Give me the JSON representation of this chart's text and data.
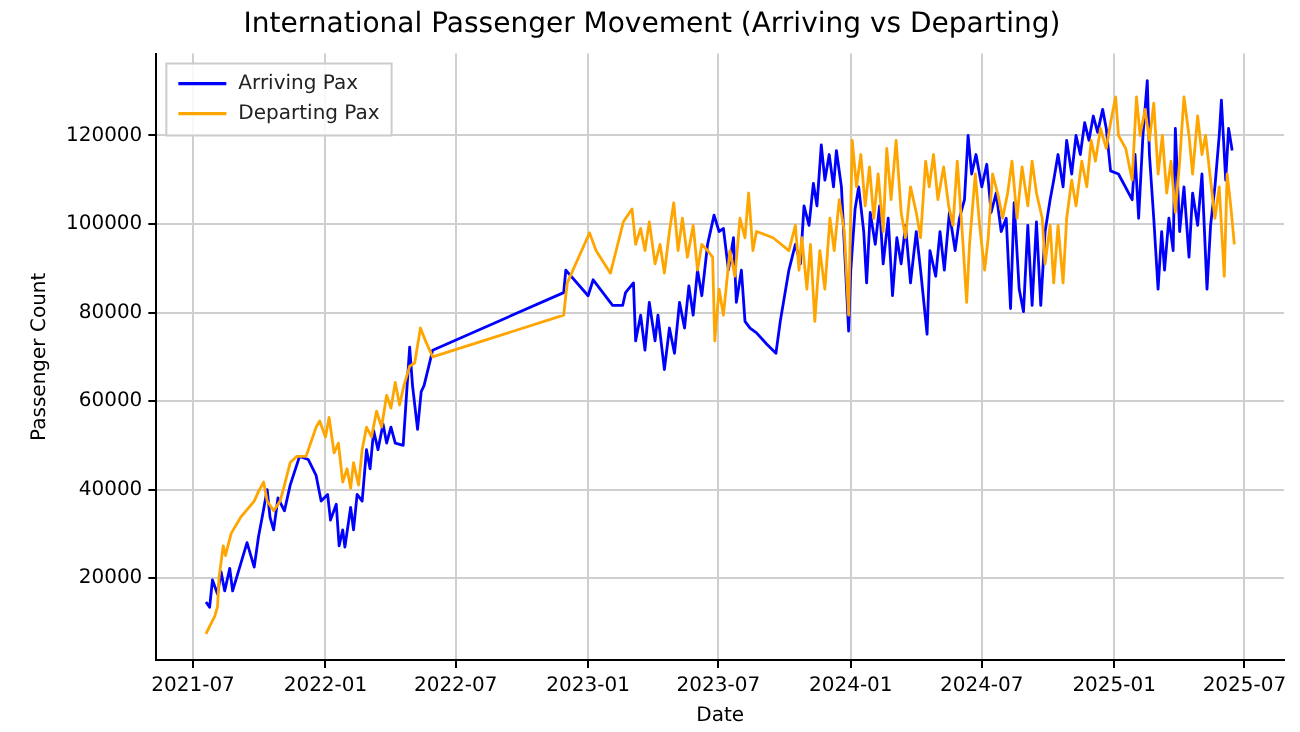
{
  "chart_data": {
    "type": "line",
    "title": "International Passenger Movement (Arriving vs Departing)",
    "xlabel": "Date",
    "ylabel": "Passenger Count",
    "xlim": [
      "2021-05-11",
      "2025-08-25"
    ],
    "xticks": [
      "2021-07",
      "2022-01",
      "2022-07",
      "2023-01",
      "2023-07",
      "2024-01",
      "2024-07",
      "2025-01",
      "2025-07"
    ],
    "ylim": [
      1500,
      138500
    ],
    "yticks": [
      20000,
      40000,
      60000,
      80000,
      100000,
      120000
    ],
    "grid": true,
    "legend": "top left",
    "marker": "none",
    "line_style": "solid",
    "series": [
      {
        "name": "Arriving Pax",
        "color": "#0000ff",
        "x": [
          "2021-07-19",
          "2021-07-24",
          "2021-07-28",
          "2021-08-04",
          "2021-08-09",
          "2021-08-14",
          "2021-08-21",
          "2021-08-25",
          "2021-09-14",
          "2021-09-24",
          "2021-09-30",
          "2021-10-05",
          "2021-10-12",
          "2021-10-16",
          "2021-10-21",
          "2021-10-27",
          "2021-11-05",
          "2021-11-13",
          "2021-11-26",
          "2021-12-08",
          "2021-12-19",
          "2021-12-26",
          "2022-01-04",
          "2022-01-08",
          "2022-01-16",
          "2022-01-20",
          "2022-01-25",
          "2022-01-28",
          "2022-02-05",
          "2022-02-09",
          "2022-02-14",
          "2022-02-21",
          "2022-02-27",
          "2022-03-04",
          "2022-03-09",
          "2022-03-15",
          "2022-03-22",
          "2022-03-27",
          "2022-04-02",
          "2022-04-08",
          "2022-04-19",
          "2022-04-28",
          "2022-05-02",
          "2022-05-09",
          "2022-05-14",
          "2022-05-18",
          "2022-05-30",
          "2022-11-28",
          "2022-12-01",
          "2023-01-01",
          "2023-01-08",
          "2023-02-04",
          "2023-02-18",
          "2023-02-22",
          "2023-03-05",
          "2023-03-08",
          "2023-03-15",
          "2023-03-21",
          "2023-03-27",
          "2023-04-04",
          "2023-04-08",
          "2023-04-17",
          "2023-04-24",
          "2023-05-01",
          "2023-05-08",
          "2023-05-15",
          "2023-05-21",
          "2023-05-27",
          "2023-06-02",
          "2023-06-08",
          "2023-06-16",
          "2023-06-25",
          "2023-07-02",
          "2023-07-08",
          "2023-07-15",
          "2023-07-22",
          "2023-07-26",
          "2023-08-02",
          "2023-08-07",
          "2023-08-14",
          "2023-08-23",
          "2023-09-06",
          "2023-09-19",
          "2023-09-25",
          "2023-10-07",
          "2023-10-16",
          "2023-10-23",
          "2023-10-28",
          "2023-11-04",
          "2023-11-10",
          "2023-11-15",
          "2023-11-21",
          "2023-11-26",
          "2023-12-02",
          "2023-12-08",
          "2023-12-12",
          "2023-12-19",
          "2023-12-29",
          "2024-01-01",
          "2024-01-07",
          "2024-01-12",
          "2024-01-19",
          "2024-01-23",
          "2024-01-28",
          "2024-02-04",
          "2024-02-10",
          "2024-02-15",
          "2024-02-22",
          "2024-02-28",
          "2024-03-05",
          "2024-03-11",
          "2024-03-17",
          "2024-03-24",
          "2024-04-01",
          "2024-04-07",
          "2024-04-16",
          "2024-04-20",
          "2024-04-28",
          "2024-05-04",
          "2024-05-10",
          "2024-05-17",
          "2024-05-25",
          "2024-05-31",
          "2024-06-07",
          "2024-06-12",
          "2024-06-17",
          "2024-06-23",
          "2024-07-01",
          "2024-07-08",
          "2024-07-14",
          "2024-07-21",
          "2024-07-28",
          "2024-08-04",
          "2024-08-10",
          "2024-08-15",
          "2024-08-22",
          "2024-08-28",
          "2024-09-03",
          "2024-09-09",
          "2024-09-15",
          "2024-09-21",
          "2024-09-27",
          "2024-10-04",
          "2024-10-09",
          "2024-10-15",
          "2024-10-22",
          "2024-10-27",
          "2024-11-03",
          "2024-11-09",
          "2024-11-15",
          "2024-11-21",
          "2024-11-27",
          "2024-12-03",
          "2024-12-09",
          "2024-12-16",
          "2024-12-21",
          "2024-12-27",
          "2025-01-07",
          "2025-01-26",
          "2025-01-30",
          "2025-02-04",
          "2025-02-10",
          "2025-02-16",
          "2025-02-19",
          "2025-02-25",
          "2025-03-03",
          "2025-03-08",
          "2025-03-12",
          "2025-03-18",
          "2025-03-24",
          "2025-03-27",
          "2025-04-02",
          "2025-04-08",
          "2025-04-15",
          "2025-04-20",
          "2025-04-27",
          "2025-05-03",
          "2025-05-10",
          "2025-05-15",
          "2025-05-21",
          "2025-05-27",
          "2025-05-30",
          "2025-06-05",
          "2025-06-09",
          "2025-06-14"
        ],
        "values": [
          14600,
          13400,
          19600,
          16400,
          21400,
          17100,
          22200,
          17100,
          28000,
          22500,
          29400,
          33700,
          40000,
          33700,
          30900,
          38100,
          35200,
          41000,
          47500,
          46800,
          43200,
          37400,
          38900,
          33100,
          36700,
          27300,
          30900,
          27000,
          36000,
          30900,
          38900,
          37400,
          49000,
          44700,
          53300,
          49000,
          54800,
          50500,
          54100,
          50500,
          50000,
          72200,
          63500,
          53600,
          62100,
          63500,
          71500,
          84500,
          89600,
          83800,
          87400,
          81600,
          81600,
          84500,
          86700,
          73600,
          79400,
          71500,
          82300,
          73600,
          79400,
          67100,
          76500,
          70800,
          82300,
          76500,
          86000,
          79400,
          89600,
          83800,
          95400,
          102000,
          98300,
          99000,
          89600,
          96900,
          82300,
          89600,
          78000,
          76500,
          75400,
          72900,
          70800,
          78000,
          89600,
          95400,
          91000,
          104100,
          99700,
          109200,
          104100,
          117900,
          109900,
          115700,
          108400,
          116600,
          108400,
          75800,
          89600,
          103400,
          108400,
          98300,
          86700,
          102600,
          95400,
          104100,
          91000,
          101300,
          83800,
          96900,
          91000,
          99700,
          86700,
          98300,
          89600,
          75100,
          94000,
          88200,
          98300,
          89600,
          102600,
          94000,
          101300,
          105500,
          120000,
          111300,
          115700,
          108400,
          113500,
          102600,
          107000,
          98300,
          101300,
          80900,
          104800,
          85300,
          80200,
          99700,
          81600,
          100500,
          81600,
          98300,
          105500,
          109900,
          115700,
          108400,
          118900,
          111300,
          120000,
          115700,
          122900,
          118900,
          124400,
          120700,
          125900,
          121600,
          112000,
          111300,
          105500,
          115700,
          101300,
          120000,
          132400,
          115700,
          101300,
          85300,
          98300,
          89600,
          101300,
          94000,
          121600,
          98300,
          108400,
          92500,
          107000,
          99700,
          111300,
          85300,
          99700,
          108400,
          120000,
          128000,
          109900,
          121600,
          116600
        ]
      },
      {
        "name": "Departing Pax",
        "color": "#ffa500",
        "x": [
          "2021-07-19",
          "2021-07-24",
          "2021-07-31",
          "2021-08-04",
          "2021-08-06",
          "2021-08-12",
          "2021-08-15",
          "2021-08-23",
          "2021-09-05",
          "2021-09-24",
          "2021-09-30",
          "2021-10-07",
          "2021-10-12",
          "2021-10-21",
          "2021-10-30",
          "2021-11-05",
          "2021-11-13",
          "2021-11-22",
          "2021-12-05",
          "2021-12-19",
          "2021-12-24",
          "2022-01-01",
          "2022-01-06",
          "2022-01-13",
          "2022-01-19",
          "2022-01-25",
          "2022-01-31",
          "2022-02-05",
          "2022-02-09",
          "2022-02-16",
          "2022-02-21",
          "2022-02-27",
          "2022-03-06",
          "2022-03-13",
          "2022-03-20",
          "2022-03-27",
          "2022-04-02",
          "2022-04-08",
          "2022-04-14",
          "2022-04-20",
          "2022-04-28",
          "2022-05-05",
          "2022-05-13",
          "2022-05-20",
          "2022-05-30",
          "2022-11-28",
          "2022-12-03",
          "2023-01-03",
          "2023-01-12",
          "2023-02-01",
          "2023-02-19",
          "2023-03-03",
          "2023-03-08",
          "2023-03-15",
          "2023-03-21",
          "2023-03-27",
          "2023-04-04",
          "2023-04-11",
          "2023-04-17",
          "2023-04-24",
          "2023-04-30",
          "2023-05-06",
          "2023-05-12",
          "2023-05-19",
          "2023-05-27",
          "2023-06-02",
          "2023-06-08",
          "2023-06-16",
          "2023-06-23",
          "2023-06-26",
          "2023-07-02",
          "2023-07-08",
          "2023-07-17",
          "2023-07-24",
          "2023-07-31",
          "2023-08-07",
          "2023-08-12",
          "2023-08-18",
          "2023-08-23",
          "2023-09-15",
          "2023-10-07",
          "2023-10-16",
          "2023-10-21",
          "2023-10-25",
          "2023-11-01",
          "2023-11-06",
          "2023-11-12",
          "2023-11-19",
          "2023-11-26",
          "2023-12-03",
          "2023-12-09",
          "2023-12-16",
          "2023-12-23",
          "2023-12-29",
          "2024-01-03",
          "2024-01-09",
          "2024-01-15",
          "2024-01-21",
          "2024-01-27",
          "2024-02-02",
          "2024-02-08",
          "2024-02-15",
          "2024-02-20",
          "2024-02-26",
          "2024-03-04",
          "2024-03-11",
          "2024-03-17",
          "2024-03-24",
          "2024-04-01",
          "2024-04-07",
          "2024-04-14",
          "2024-04-19",
          "2024-04-25",
          "2024-05-01",
          "2024-05-09",
          "2024-05-16",
          "2024-05-22",
          "2024-05-28",
          "2024-06-05",
          "2024-06-10",
          "2024-06-14",
          "2024-06-22",
          "2024-06-28",
          "2024-07-05",
          "2024-07-10",
          "2024-07-16",
          "2024-07-23",
          "2024-07-30",
          "2024-08-06",
          "2024-08-12",
          "2024-08-19",
          "2024-08-26",
          "2024-09-03",
          "2024-09-09",
          "2024-09-15",
          "2024-09-23",
          "2024-09-27",
          "2024-10-04",
          "2024-10-09",
          "2024-10-15",
          "2024-10-22",
          "2024-10-27",
          "2024-11-03",
          "2024-11-09",
          "2024-11-17",
          "2024-11-24",
          "2024-11-30",
          "2024-12-06",
          "2024-12-13",
          "2024-12-21",
          "2024-12-27",
          "2025-01-03",
          "2025-01-07",
          "2025-01-17",
          "2025-01-26",
          "2025-02-01",
          "2025-02-06",
          "2025-02-13",
          "2025-02-19",
          "2025-02-25",
          "2025-03-03",
          "2025-03-09",
          "2025-03-15",
          "2025-03-21",
          "2025-03-27",
          "2025-04-02",
          "2025-04-08",
          "2025-04-15",
          "2025-04-20",
          "2025-04-27",
          "2025-05-03",
          "2025-05-08",
          "2025-05-15",
          "2025-05-21",
          "2025-05-27",
          "2025-06-03",
          "2025-06-07",
          "2025-06-12",
          "2025-06-17"
        ],
        "values": [
          7400,
          9100,
          11300,
          13500,
          20000,
          27300,
          25100,
          30100,
          33700,
          37400,
          39600,
          41700,
          37400,
          35200,
          37400,
          41000,
          46100,
          47500,
          47500,
          54100,
          55500,
          51900,
          56300,
          48300,
          50500,
          41700,
          44700,
          40300,
          46100,
          41000,
          49000,
          54100,
          51900,
          57700,
          54100,
          61300,
          58400,
          64200,
          59100,
          63500,
          67900,
          68600,
          76500,
          73600,
          70000,
          79400,
          86700,
          98000,
          94000,
          88900,
          100500,
          103400,
          95400,
          99000,
          94000,
          100500,
          91000,
          95400,
          88900,
          98300,
          104800,
          94000,
          101300,
          92500,
          99700,
          89600,
          95400,
          94000,
          92500,
          73600,
          85300,
          79400,
          94000,
          88200,
          101300,
          96900,
          107000,
          94000,
          98300,
          96900,
          94000,
          99700,
          89600,
          96900,
          85300,
          95400,
          78000,
          94000,
          85300,
          101300,
          94000,
          105500,
          98300,
          79400,
          118900,
          108400,
          115700,
          104100,
          112900,
          101300,
          111300,
          98300,
          117100,
          105500,
          118900,
          102600,
          96900,
          108400,
          102600,
          96900,
          114200,
          108400,
          115700,
          105500,
          112900,
          104100,
          99700,
          114200,
          95400,
          82300,
          95400,
          111300,
          99700,
          89600,
          96900,
          111300,
          107000,
          101300,
          107000,
          114200,
          101300,
          112900,
          104100,
          114200,
          107000,
          101300,
          91000,
          99700,
          86700,
          99700,
          86700,
          101300,
          109900,
          104100,
          114200,
          108400,
          118900,
          114200,
          121600,
          117100,
          122900,
          128700,
          120000,
          117100,
          109900,
          128700,
          120000,
          125900,
          118900,
          127300,
          111300,
          120000,
          107000,
          114200,
          102600,
          114200,
          128700,
          120000,
          111300,
          124400,
          115700,
          120000,
          109900,
          101300,
          108400,
          88200,
          111300,
          104100,
          95400
        ]
      }
    ]
  }
}
